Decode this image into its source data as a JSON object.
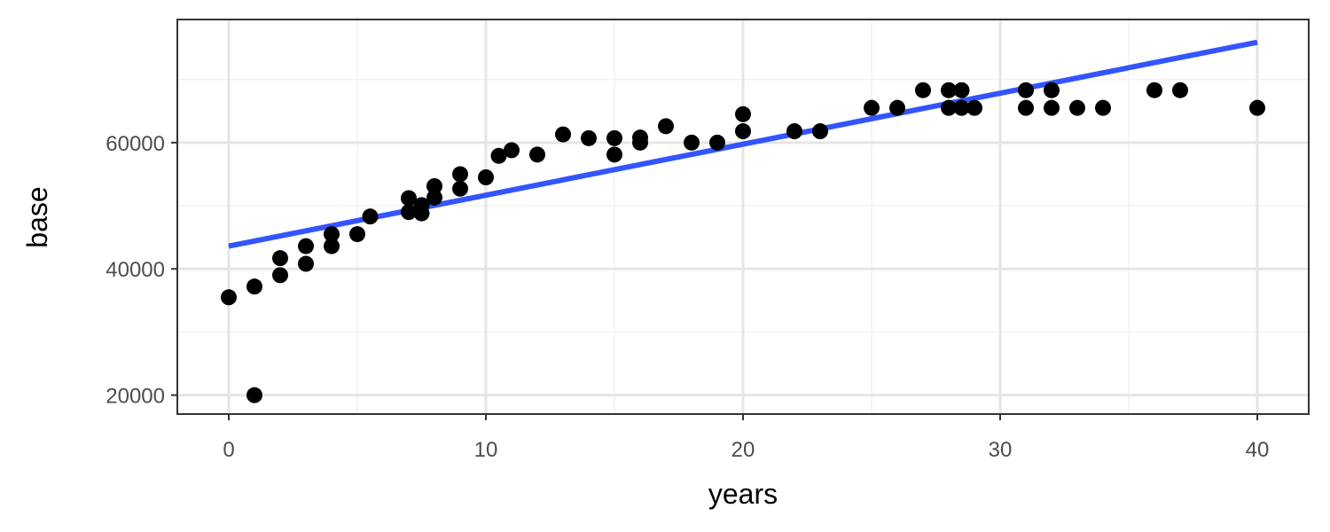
{
  "chart_data": {
    "type": "scatter",
    "xlabel": "years",
    "ylabel": "base",
    "xlim": [
      -2,
      42
    ],
    "ylim": [
      17000,
      79500
    ],
    "x_ticks": [
      0,
      10,
      20,
      30,
      40
    ],
    "x_tick_labels": [
      "0",
      "10",
      "20",
      "30",
      "40"
    ],
    "y_ticks": [
      20000,
      40000,
      60000
    ],
    "y_tick_labels": [
      "20000",
      "40000",
      "60000"
    ],
    "x_minor_ticks": [
      5,
      15,
      25,
      35
    ],
    "y_minor_ticks": [
      30000,
      50000,
      70000
    ],
    "grid": true,
    "points": [
      [
        0,
        35500
      ],
      [
        1,
        37200
      ],
      [
        1,
        20000
      ],
      [
        2,
        41700
      ],
      [
        2,
        39000
      ],
      [
        3,
        43600
      ],
      [
        3,
        40800
      ],
      [
        4,
        45500
      ],
      [
        4,
        43600
      ],
      [
        5,
        45500
      ],
      [
        5.5,
        48300
      ],
      [
        7,
        51200
      ],
      [
        7,
        49000
      ],
      [
        7.5,
        50100
      ],
      [
        7.5,
        48800
      ],
      [
        8,
        53100
      ],
      [
        8,
        51300
      ],
      [
        9,
        55000
      ],
      [
        9,
        52700
      ],
      [
        10,
        54500
      ],
      [
        10.5,
        57900
      ],
      [
        11,
        58800
      ],
      [
        12,
        58100
      ],
      [
        13,
        61300
      ],
      [
        14,
        60700
      ],
      [
        15,
        60700
      ],
      [
        15,
        58100
      ],
      [
        16,
        60800
      ],
      [
        16,
        60000
      ],
      [
        17,
        62600
      ],
      [
        18,
        60000
      ],
      [
        19,
        60000
      ],
      [
        20,
        64500
      ],
      [
        20,
        61800
      ],
      [
        22,
        61800
      ],
      [
        23,
        61800
      ],
      [
        25,
        65500
      ],
      [
        26,
        65500
      ],
      [
        27,
        68300
      ],
      [
        28,
        68300
      ],
      [
        28,
        65500
      ],
      [
        28.5,
        68300
      ],
      [
        28.5,
        65500
      ],
      [
        29,
        65500
      ],
      [
        31,
        68300
      ],
      [
        31,
        65500
      ],
      [
        32,
        68300
      ],
      [
        32,
        65500
      ],
      [
        33,
        65500
      ],
      [
        34,
        65500
      ],
      [
        36,
        68300
      ],
      [
        37,
        68300
      ],
      [
        40,
        65500
      ]
    ],
    "trend_line": {
      "x": [
        0,
        40
      ],
      "y": [
        43600,
        75900
      ]
    },
    "colors": {
      "points": "#000000",
      "trend": "#3355ff",
      "grid_major": "#e5e5e5",
      "grid_minor": "#f2f2f2",
      "panel_border": "#333333"
    }
  }
}
